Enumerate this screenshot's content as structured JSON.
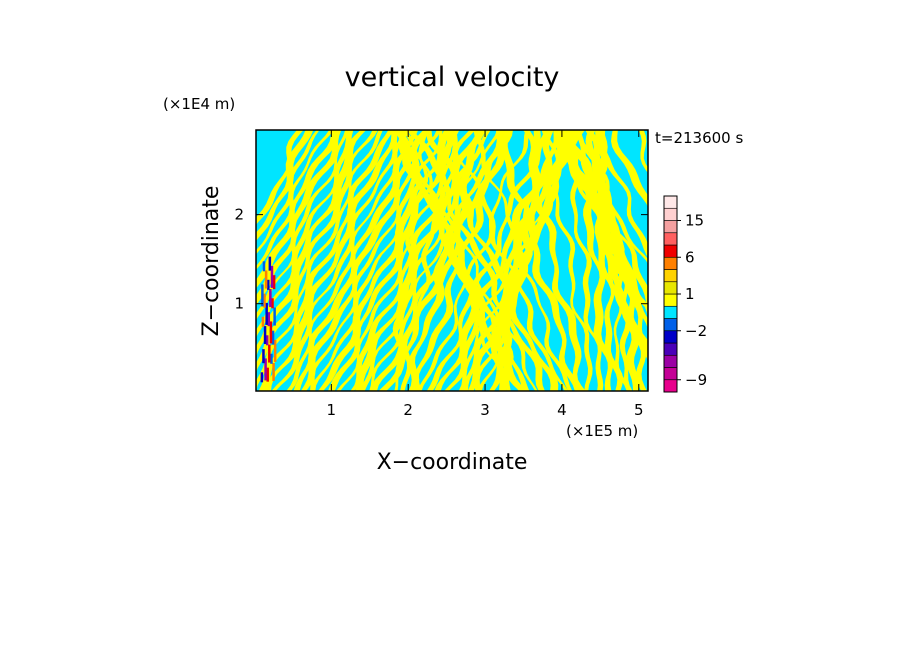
{
  "chart_data": {
    "type": "heatmap",
    "title": "vertical velocity",
    "xlabel": "X−coordinate",
    "ylabel": "Z−coordinate",
    "x_unit": "(×1E5 m)",
    "y_unit": "(×1E4 m)",
    "time_label": "t=213600 s",
    "xlim": [
      0.02,
      5.12
    ],
    "ylim": [
      0.02,
      2.95
    ],
    "x_ticks": [
      1,
      2,
      3,
      4,
      5
    ],
    "y_ticks": [
      1,
      2
    ],
    "x_tick_labels": [
      "1",
      "2",
      "3",
      "4",
      "5"
    ],
    "y_tick_labels": [
      "1",
      "2"
    ],
    "colorbar": {
      "levels": [
        -11,
        -9,
        -7,
        -5,
        -3,
        -2,
        -1,
        0,
        1,
        2,
        3,
        6,
        9,
        12,
        15,
        18,
        21
      ],
      "colors": [
        "#e8008c",
        "#c40096",
        "#9b00a4",
        "#4a00b8",
        "#0000c8",
        "#0060e8",
        "#00e5ff",
        "#ffff00",
        "#e8e600",
        "#ffd200",
        "#ff8000",
        "#f00000",
        "#ff6060",
        "#f4a0a0",
        "#ffd0d0",
        "#ffe8e8"
      ],
      "tick_values": [
        15,
        6,
        1,
        -2,
        -9
      ],
      "tick_labels": [
        "15",
        "6",
        "1",
        "−2",
        "−9"
      ]
    },
    "field_description": "alternating positive (yellow) and negative (cyan) vertical velocity bands tilted across the domain; strong extremes (red/blue) near x≈0.2"
  }
}
